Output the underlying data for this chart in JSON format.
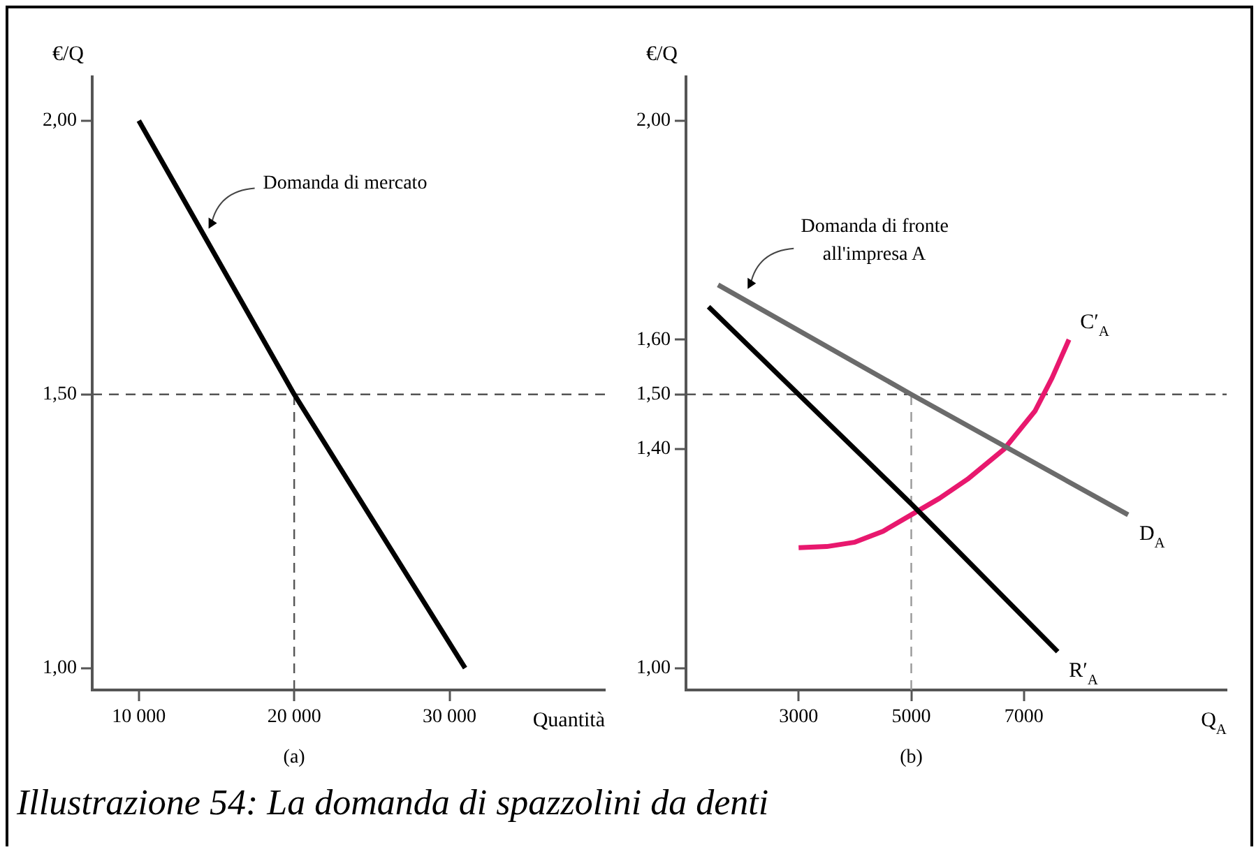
{
  "chart_data": [
    {
      "type": "line",
      "title": "(a)",
      "xlabel": "Quantità",
      "ylabel": "€/Q",
      "series": [
        {
          "color": "#000000",
          "x": [
            10000,
            20000,
            31000
          ],
          "values": [
            2.0,
            1.5,
            1.0
          ]
        }
      ],
      "xlim": [
        7000,
        40000
      ],
      "xticks": [
        {
          "value": 10000,
          "label": "10 000"
        },
        {
          "value": 20000,
          "label": "20 000"
        },
        {
          "value": 30000,
          "label": "30 000"
        }
      ],
      "ylim": [
        0.96,
        2.08
      ],
      "yticks": [
        {
          "value": 1,
          "label": "1,00"
        },
        {
          "value": 1.5,
          "label": "1,50"
        },
        {
          "value": 2,
          "label": "2,00"
        }
      ],
      "ref_lines": [
        {
          "axis": "y",
          "value": 1.5,
          "color": "#555555",
          "line_style": "dashed"
        },
        {
          "axis": "x",
          "value": 20000,
          "color": "#555555",
          "line_style": "dashed"
        }
      ],
      "annotations": [
        {
          "text": "Domanda di mercato",
          "x": 14400,
          "y": 1.8
        },
        "Illustrazione 54: La domanda di spazzolini da denti"
      ],
      "grid": false,
      "legend": false,
      "marker": "none",
      "line_style": "solid"
    },
    {
      "type": "line",
      "title": "(b)",
      "xlabel": "Q$_{A}$",
      "ylabel": "€/Q",
      "series": [
        {
          "name": "D$_{A}$",
          "color": "#6b6b6b",
          "x": [
            1570,
            5000,
            8850
          ],
          "values": [
            1.7,
            1.5,
            1.28
          ]
        },
        {
          "name": "R′$_{A}$",
          "color": "#000000",
          "x": [
            1400,
            3000,
            5000,
            7600
          ],
          "values": [
            1.66,
            1.5,
            1.3,
            1.03
          ]
        },
        {
          "name": "C′$_{A}$",
          "color": "#e8186e",
          "x": [
            3000,
            3500,
            4000,
            4500,
            5000,
            5500,
            6000,
            6650,
            7200,
            7500,
            7800
          ],
          "values": [
            1.22,
            1.222,
            1.23,
            1.25,
            1.28,
            1.31,
            1.345,
            1.4,
            1.47,
            1.53,
            1.6
          ]
        }
      ],
      "xlim": [
        1000,
        10600
      ],
      "xticks": [
        3000,
        5000,
        7000
      ],
      "ylim": [
        0.96,
        2.08
      ],
      "yticks": [
        {
          "value": 1,
          "label": "1,00"
        },
        {
          "value": 1.4,
          "label": "1,40"
        },
        {
          "value": 1.5,
          "label": "1,50"
        },
        {
          "value": 1.6,
          "label": "1,60"
        },
        {
          "value": 2,
          "label": "2,00"
        }
      ],
      "ref_lines": [
        {
          "axis": "y",
          "value": 1.5,
          "color": "#555555",
          "line_style": "dashed"
        },
        {
          "axis": "x",
          "value": 5000,
          "color": "#999999",
          "line_style": "dashed"
        }
      ],
      "annotations": [
        {
          "text": "Domanda di fronte\nall'impresa A",
          "x": 2070,
          "y": 1.69
        }
      ],
      "grid": false,
      "legend": false,
      "marker": "none",
      "line_style": "solid"
    }
  ]
}
